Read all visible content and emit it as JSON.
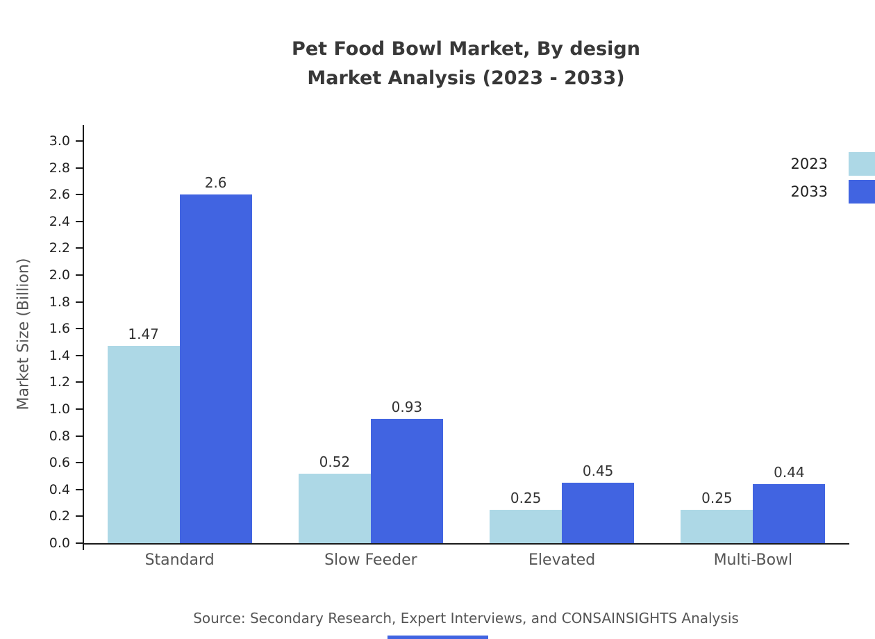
{
  "title": {
    "line1": "Pet Food Bowl Market, By design",
    "line2": "Market Analysis (2023 - 2033)"
  },
  "source": "Source: Secondary Research, Expert Interviews, and CONSAINSIGHTS Analysis",
  "colors": {
    "series_2023": "#ADD8E6",
    "series_2033": "#4164E1",
    "axis": "#1a1a1a",
    "footer_accent": "#4164E1"
  },
  "chart_data": {
    "type": "bar",
    "title": "Pet Food Bowl Market, By design Market Analysis (2023 - 2033)",
    "categories": [
      "Standard",
      "Slow Feeder",
      "Elevated",
      "Multi-Bowl"
    ],
    "series": [
      {
        "name": "2023",
        "color": "#ADD8E6",
        "values": [
          1.47,
          0.52,
          0.25,
          0.25
        ]
      },
      {
        "name": "2033",
        "color": "#4164E1",
        "values": [
          2.6,
          0.93,
          0.45,
          0.44
        ]
      }
    ],
    "xlabel": "",
    "ylabel": "Market Size (Billion)",
    "ylim": [
      0.0,
      3.0
    ],
    "ytick_step": 0.2,
    "grid": false,
    "legend_position": "top-right",
    "value_labels": true
  }
}
